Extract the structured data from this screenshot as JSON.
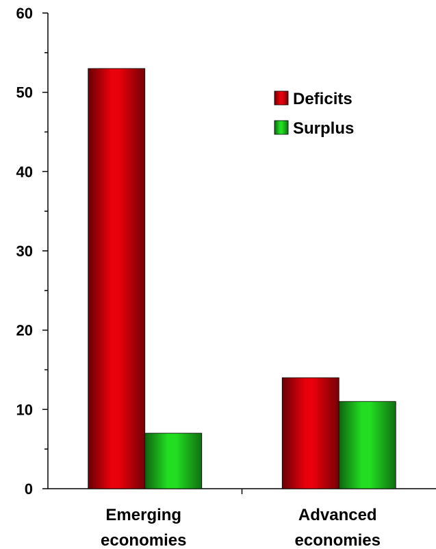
{
  "chart_data": {
    "type": "bar",
    "categories": [
      "Emerging economies",
      "Advanced economies"
    ],
    "category_lines": [
      [
        "Emerging",
        "economies"
      ],
      [
        "Advanced",
        "economies"
      ]
    ],
    "series": [
      {
        "name": "Deficits",
        "values": [
          53,
          14
        ],
        "color": "#e8000b"
      },
      {
        "name": "Surplus",
        "values": [
          7,
          11
        ],
        "color": "#22dd22"
      }
    ],
    "title": "",
    "xlabel": "",
    "ylabel": "",
    "ylim": [
      0,
      60
    ],
    "yticks": [
      0,
      10,
      20,
      30,
      40,
      50,
      60
    ],
    "grid": false,
    "legend": "top-right"
  }
}
